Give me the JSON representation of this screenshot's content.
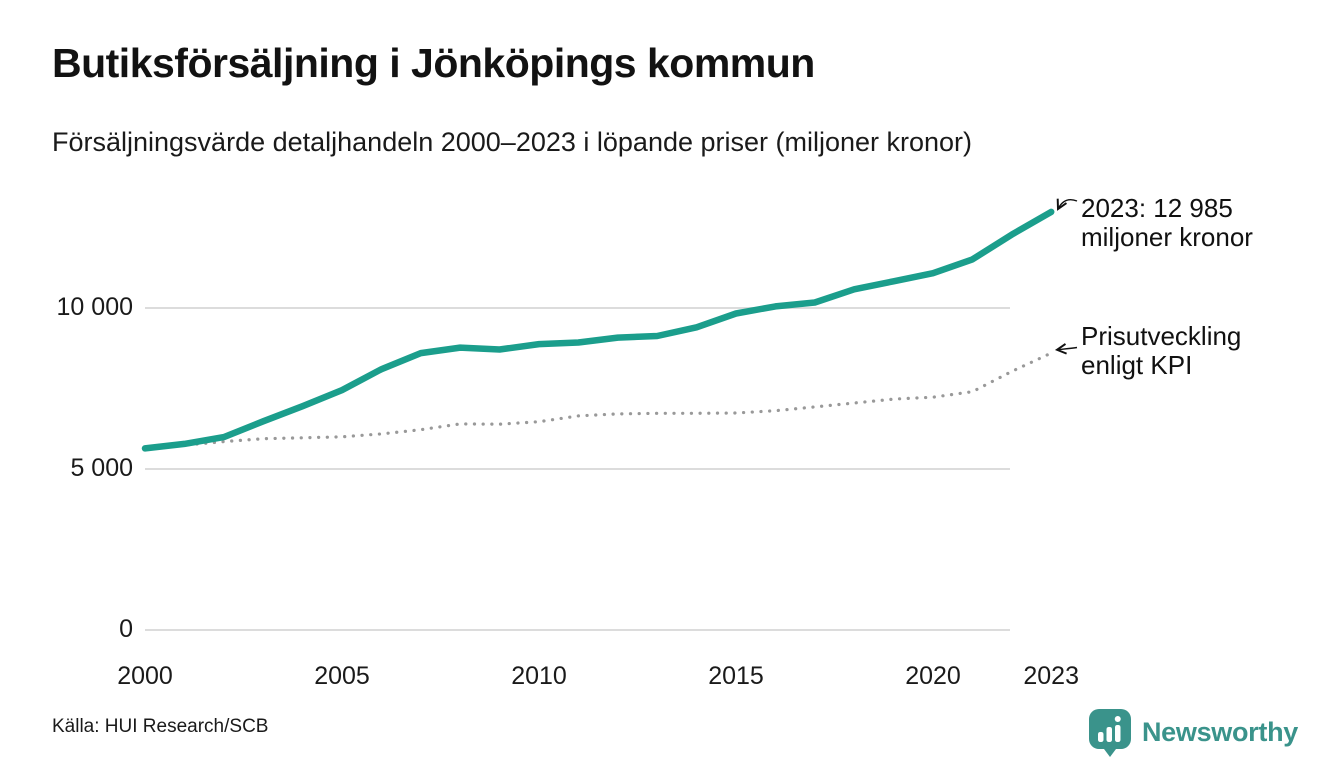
{
  "header": {
    "title": "Butiksförsäljning i Jönköpings kommun",
    "subtitle": "Försäljningsvärde detaljhandeln 2000–2023 i löpande priser (miljoner kronor)"
  },
  "chart_data": {
    "type": "line",
    "x": [
      2000,
      2001,
      2002,
      2003,
      2004,
      2005,
      2006,
      2007,
      2008,
      2009,
      2010,
      2011,
      2012,
      2013,
      2014,
      2015,
      2016,
      2017,
      2018,
      2019,
      2020,
      2021,
      2022,
      2023
    ],
    "series": [
      {
        "name": "Butiksförsäljning i löpande priser (miljoner kronor)",
        "color": "#1b9e8c",
        "style": "solid",
        "values": [
          5640,
          5780,
          5990,
          6480,
          6950,
          7450,
          8100,
          8600,
          8770,
          8710,
          8880,
          8930,
          9080,
          9130,
          9400,
          9830,
          10050,
          10170,
          10580,
          10830,
          11080,
          11510,
          12280,
          12985
        ]
      },
      {
        "name": "Prisutveckling enligt KPI",
        "color": "#999999",
        "style": "dotted",
        "values": [
          5640,
          5740,
          5850,
          5940,
          5970,
          6000,
          6090,
          6220,
          6400,
          6390,
          6470,
          6650,
          6710,
          6730,
          6730,
          6740,
          6810,
          6930,
          7050,
          7170,
          7230,
          7400,
          8030,
          8600
        ]
      }
    ],
    "ylim": [
      0,
      13500
    ],
    "grid": "horizontal",
    "legend_position": "none",
    "yticks": [
      {
        "value": 10000,
        "label": "10 000"
      },
      {
        "value": 5000,
        "label": "5 000"
      },
      {
        "value": 0,
        "label": "0"
      }
    ],
    "xticks": [
      {
        "value": 2000,
        "label": "2000"
      },
      {
        "value": 2005,
        "label": "2005"
      },
      {
        "value": 2010,
        "label": "2010"
      },
      {
        "value": 2015,
        "label": "2015"
      },
      {
        "value": 2020,
        "label": "2020"
      },
      {
        "value": 2023,
        "label": "2023"
      }
    ],
    "annotations": [
      {
        "line1": "2023: 12 985",
        "line2": "miljoner kronor",
        "points_to": "sales line end 2023"
      },
      {
        "line1": "Prisutveckling",
        "line2": "enligt KPI",
        "points_to": "KPI line end 2023"
      }
    ]
  },
  "footer": {
    "source": "Källa: HUI Research/SCB",
    "brand": "Newsworthy"
  },
  "colors": {
    "sales_line": "#1b9e8c",
    "kpi_line": "#999999",
    "gridline": "#dcdcdc",
    "brand_teal": "#3a938b",
    "text": "#111111"
  }
}
